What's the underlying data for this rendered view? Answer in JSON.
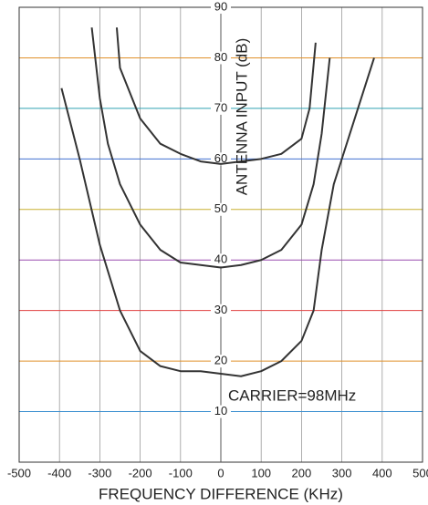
{
  "chart_data": {
    "type": "line",
    "xlabel": "FREQUENCY DIFFERENCE (KHz)",
    "ylabel": "ANTENNA INPUT (dB)",
    "annotation": "CARRIER=98MHz",
    "xlim": [
      -500,
      500
    ],
    "ylim": [
      0,
      90
    ],
    "xticks": [
      -500,
      -400,
      -300,
      -200,
      -100,
      0,
      100,
      200,
      300,
      400,
      500
    ],
    "yticks": [
      10,
      20,
      30,
      40,
      50,
      60,
      70,
      80,
      90
    ],
    "grid": true,
    "grid_colors": [
      "#3b8fd0",
      "#e0902a",
      "#e04040",
      "#9a4fb0",
      "#c8b030",
      "#4070d0",
      "#30a0b0",
      "#e0902a",
      "#444444"
    ],
    "series": [
      {
        "color": "#333333",
        "x": [
          -258,
          -250,
          -200,
          -150,
          -100,
          -50,
          0,
          50,
          100,
          150,
          200,
          220,
          235
        ],
        "values": [
          86,
          78,
          68,
          63,
          61,
          59.5,
          59,
          59.5,
          60,
          61,
          64,
          70,
          83
        ]
      },
      {
        "color": "#333333",
        "x": [
          -320,
          -300,
          -280,
          -250,
          -200,
          -150,
          -100,
          -50,
          0,
          50,
          100,
          150,
          200,
          230,
          250,
          270
        ],
        "values": [
          86,
          72,
          63,
          55,
          47,
          42,
          39.5,
          39,
          38.5,
          39,
          40,
          42,
          47,
          55,
          65,
          80
        ]
      },
      {
        "color": "#333333",
        "x": [
          -395,
          -350,
          -300,
          -250,
          -200,
          -150,
          -100,
          -50,
          0,
          50,
          100,
          150,
          200,
          230,
          250,
          280,
          320,
          380
        ],
        "values": [
          74,
          60,
          43,
          30,
          22,
          19,
          18,
          18,
          17.5,
          17,
          18,
          20,
          24,
          30,
          42,
          55,
          65,
          80
        ]
      }
    ]
  }
}
